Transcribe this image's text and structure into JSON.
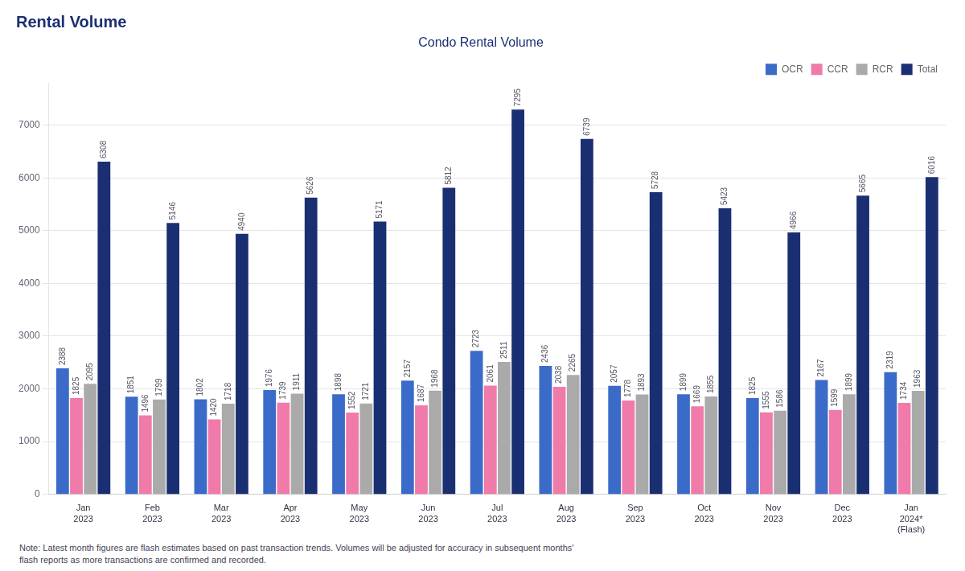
{
  "chart_data": {
    "type": "bar",
    "title": "Rental Volume",
    "subtitle": "Condo Rental Volume",
    "categories": [
      "Jan\n2023",
      "Feb\n2023",
      "Mar\n2023",
      "Apr\n2023",
      "May\n2023",
      "Jun\n2023",
      "Jul\n2023",
      "Aug\n2023",
      "Sep\n2023",
      "Oct\n2023",
      "Nov\n2023",
      "Dec\n2023",
      "Jan\n2024*\n(Flash)"
    ],
    "series": [
      {
        "name": "OCR",
        "color": "#3a6bc8",
        "values": [
          2388,
          1851,
          1802,
          1976,
          1898,
          2157,
          2723,
          2436,
          2057,
          1899,
          1825,
          2167,
          2319
        ]
      },
      {
        "name": "CCR",
        "color": "#f07aaa",
        "values": [
          1825,
          1496,
          1420,
          1739,
          1552,
          1687,
          2061,
          2038,
          1778,
          1669,
          1555,
          1599,
          1734
        ]
      },
      {
        "name": "RCR",
        "color": "#aaaaaa",
        "values": [
          2095,
          1799,
          1718,
          1911,
          1721,
          1968,
          2511,
          2265,
          1893,
          1855,
          1586,
          1899,
          1963
        ]
      },
      {
        "name": "Total",
        "color": "#1a2f72",
        "values": [
          6308,
          5146,
          4940,
          5626,
          5171,
          5812,
          7295,
          6739,
          5728,
          5423,
          4966,
          5665,
          6016
        ]
      }
    ],
    "ylim": [
      0,
      7800
    ],
    "yticks": [
      0,
      1000,
      2000,
      3000,
      4000,
      5000,
      6000,
      7000
    ],
    "grid": true,
    "legend": "upper right",
    "data_labels": true,
    "annotations": [
      "Note: Latest month figures are flash estimates based on past transaction trends. Volumes will be adjusted for accuracy in subsequent months'\nflash reports as more transactions are confirmed and recorded."
    ]
  }
}
